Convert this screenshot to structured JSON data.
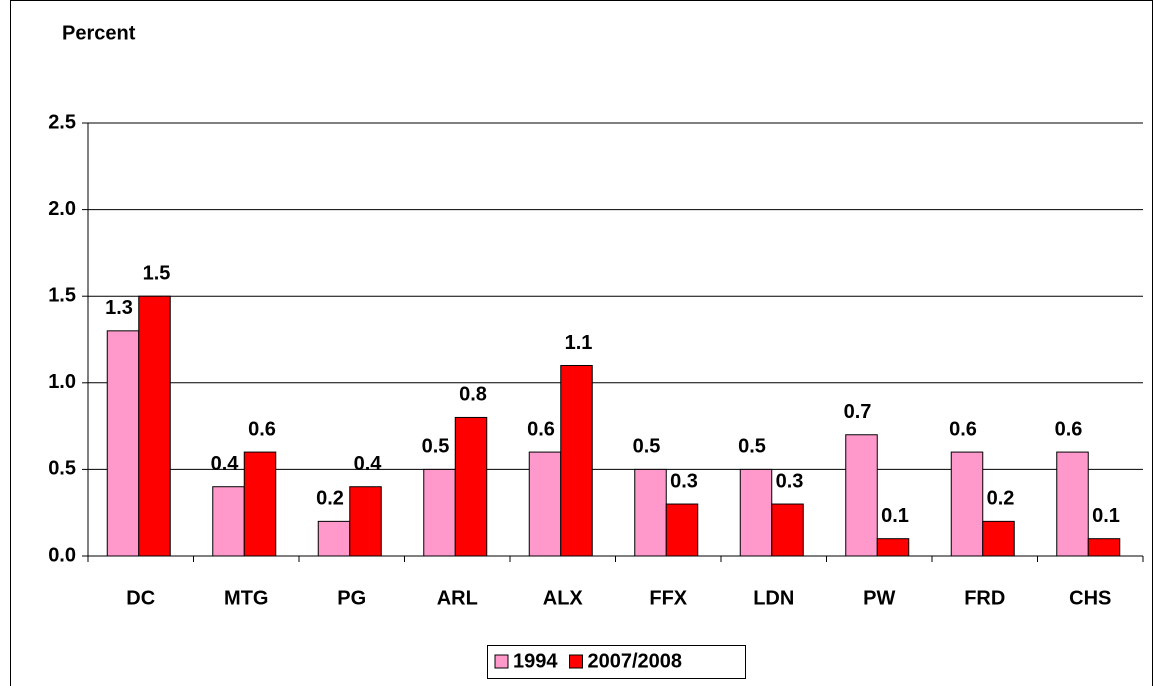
{
  "chart_data": {
    "type": "bar",
    "y_label": "Percent",
    "categories": [
      "DC",
      "MTG",
      "PG",
      "ARL",
      "ALX",
      "FFX",
      "LDN",
      "PW",
      "FRD",
      "CHS"
    ],
    "series": [
      {
        "name": "1994",
        "color": "#ff99cc",
        "values": [
          1.3,
          0.4,
          0.2,
          0.5,
          0.6,
          0.5,
          0.5,
          0.7,
          0.6,
          0.6
        ]
      },
      {
        "name": "2007/2008",
        "color": "#ff0000",
        "values": [
          1.5,
          0.6,
          0.4,
          0.8,
          1.1,
          0.3,
          0.3,
          0.1,
          0.2,
          0.1
        ]
      }
    ],
    "ylim": [
      0,
      2.5
    ],
    "yticks": [
      {
        "value": 0,
        "label": "0.0"
      },
      0.5,
      {
        "value": 1,
        "label": "1.0"
      },
      1.5,
      {
        "value": 2,
        "label": "2.0"
      },
      2.5
    ],
    "grid": true,
    "legend": "bottom"
  }
}
